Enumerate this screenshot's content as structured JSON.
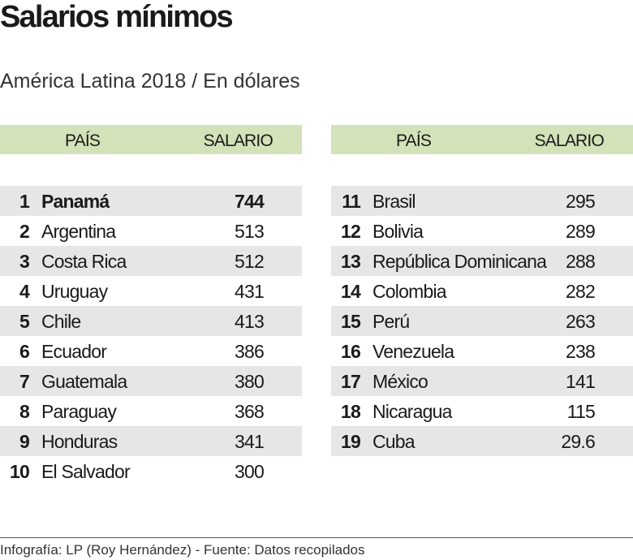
{
  "title": "Salarios mínimos",
  "subtitle": "América Latina 2018 / En dólares",
  "footer": "Infografía: LP (Roy Hernández) - Fuente: Datos recopilados",
  "colors": {
    "header": "#d3e2b8",
    "row_shade": "#e6e6e6"
  },
  "chart_data": {
    "type": "table",
    "columns": [
      "PAÍS",
      "SALARIO"
    ],
    "rows": [
      {
        "rank": "1",
        "country": "Panamá",
        "salary": "744"
      },
      {
        "rank": "2",
        "country": "Argentina",
        "salary": "513"
      },
      {
        "rank": "3",
        "country": "Costa Rica",
        "salary": "512"
      },
      {
        "rank": "4",
        "country": "Uruguay",
        "salary": "431"
      },
      {
        "rank": "5",
        "country": "Chile",
        "salary": "413"
      },
      {
        "rank": "6",
        "country": "Ecuador",
        "salary": "386"
      },
      {
        "rank": "7",
        "country": "Guatemala",
        "salary": "380"
      },
      {
        "rank": "8",
        "country": "Paraguay",
        "salary": "368"
      },
      {
        "rank": "9",
        "country": "Honduras",
        "salary": "341"
      },
      {
        "rank": "10",
        "country": "El Salvador",
        "salary": "300"
      },
      {
        "rank": "11",
        "country": "Brasil",
        "salary": "295"
      },
      {
        "rank": "12",
        "country": "Bolivia",
        "salary": "289"
      },
      {
        "rank": "13",
        "country": "República Dominicana",
        "salary": "288"
      },
      {
        "rank": "14",
        "country": "Colombia",
        "salary": "282"
      },
      {
        "rank": "15",
        "country": "Perú",
        "salary": "263"
      },
      {
        "rank": "16",
        "country": "Venezuela",
        "salary": "238"
      },
      {
        "rank": "17",
        "country": "México",
        "salary": "141"
      },
      {
        "rank": "18",
        "country": "Nicaragua",
        "salary": "115"
      },
      {
        "rank": "19",
        "country": "Cuba",
        "salary": "29.6"
      }
    ]
  }
}
